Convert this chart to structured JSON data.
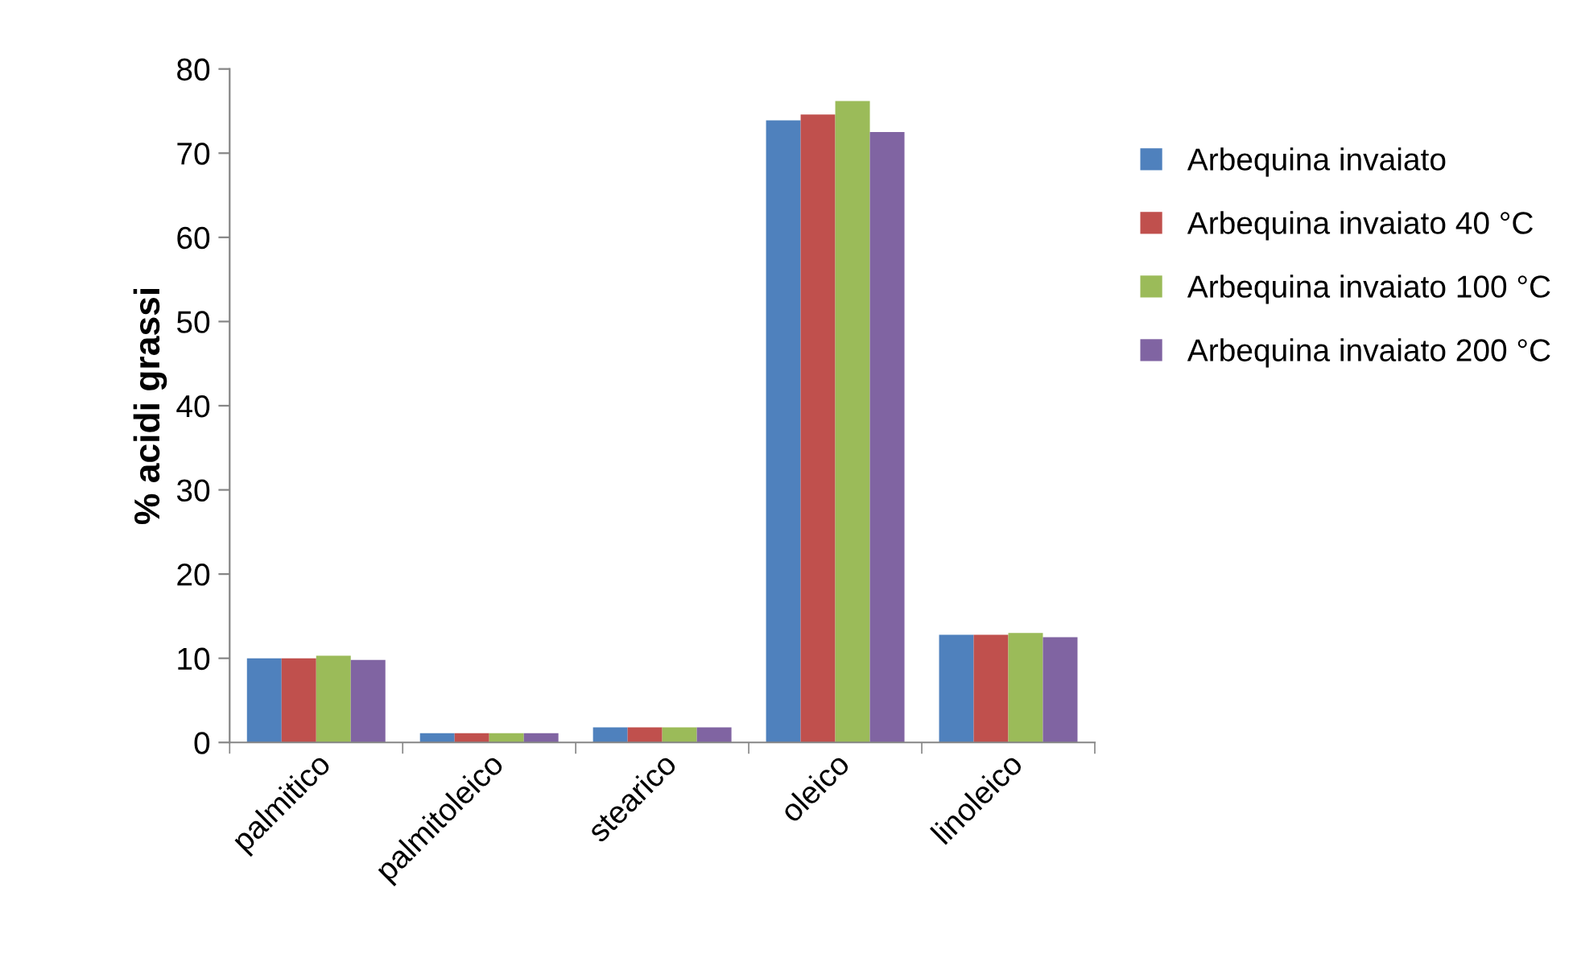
{
  "chart_data": {
    "type": "bar",
    "ylabel": "% acidi grassi",
    "categories": [
      "palmitico",
      "palmitoleico",
      "stearico",
      "oleico",
      "linoleico"
    ],
    "series": [
      {
        "name": "Arbequina invaiato",
        "color": "#4f81bd",
        "values": [
          10.0,
          1.1,
          1.8,
          73.9,
          12.8
        ]
      },
      {
        "name": "Arbequina invaiato 40 °C",
        "color": "#c0504d",
        "values": [
          10.0,
          1.1,
          1.8,
          74.6,
          12.8
        ]
      },
      {
        "name": "Arbequina invaiato 100 °C",
        "color": "#9bbb59",
        "values": [
          10.3,
          1.1,
          1.8,
          76.2,
          13.0
        ]
      },
      {
        "name": "Arbequina invaiato 200 °C",
        "color": "#8064a2",
        "values": [
          9.8,
          1.1,
          1.8,
          72.5,
          12.5
        ]
      }
    ],
    "ylim": [
      0,
      80
    ],
    "yticks": [
      0,
      10,
      20,
      30,
      40,
      50,
      60,
      70,
      80
    ],
    "grid": false,
    "legend": "right"
  }
}
